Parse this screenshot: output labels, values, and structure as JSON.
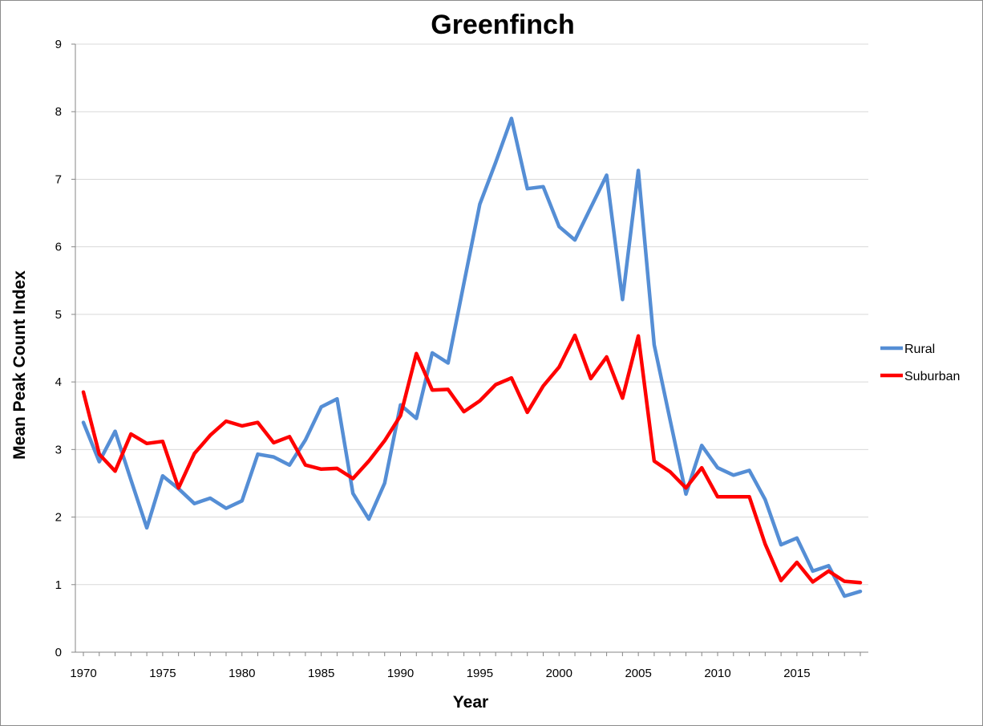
{
  "chart_data": {
    "type": "line",
    "title": "Greenfinch",
    "xlabel": "Year",
    "ylabel": "Mean Peak Count Index",
    "xlim": [
      1970,
      2019
    ],
    "ylim": [
      0,
      9
    ],
    "x_ticks": [
      1970,
      1975,
      1980,
      1985,
      1990,
      1995,
      2000,
      2005,
      2010,
      2015
    ],
    "y_ticks": [
      0,
      1,
      2,
      3,
      4,
      5,
      6,
      7,
      8,
      9
    ],
    "grid": "horizontal",
    "legend_position": "right",
    "x": [
      1970,
      1971,
      1972,
      1973,
      1974,
      1975,
      1976,
      1977,
      1978,
      1979,
      1980,
      1981,
      1982,
      1983,
      1984,
      1985,
      1986,
      1987,
      1988,
      1989,
      1990,
      1991,
      1992,
      1993,
      1994,
      1995,
      1996,
      1997,
      1998,
      1999,
      2000,
      2001,
      2002,
      2003,
      2004,
      2005,
      2006,
      2007,
      2008,
      2009,
      2010,
      2011,
      2012,
      2013,
      2014,
      2015,
      2016,
      2017,
      2018,
      2019
    ],
    "series": [
      {
        "name": "Rural",
        "color": "#558ED5",
        "values": [
          3.4,
          2.82,
          3.27,
          2.55,
          1.84,
          2.61,
          2.42,
          2.2,
          2.28,
          2.13,
          2.24,
          2.93,
          2.89,
          2.77,
          3.14,
          3.63,
          3.75,
          2.35,
          1.97,
          2.5,
          3.66,
          3.46,
          4.43,
          4.28,
          5.46,
          6.63,
          7.25,
          7.9,
          6.86,
          6.89,
          6.3,
          6.1,
          6.58,
          7.06,
          5.22,
          7.13,
          4.55,
          3.44,
          2.34,
          3.06,
          2.73,
          2.62,
          2.69,
          2.26,
          1.59,
          1.69,
          1.2,
          1.28,
          0.83,
          0.9
        ]
      },
      {
        "name": "Suburban",
        "color": "#FF0000",
        "values": [
          3.85,
          2.93,
          2.68,
          3.23,
          3.09,
          3.12,
          2.43,
          2.94,
          3.21,
          3.42,
          3.35,
          3.4,
          3.1,
          3.19,
          2.77,
          2.71,
          2.72,
          2.57,
          2.83,
          3.13,
          3.5,
          4.42,
          3.88,
          3.89,
          3.56,
          3.72,
          3.96,
          4.06,
          3.55,
          3.94,
          4.22,
          4.69,
          4.05,
          4.37,
          3.76,
          4.68,
          2.83,
          2.67,
          2.43,
          2.73,
          2.3,
          2.3,
          2.3,
          1.6,
          1.06,
          1.33,
          1.04,
          1.2,
          1.05,
          1.03
        ]
      }
    ]
  }
}
